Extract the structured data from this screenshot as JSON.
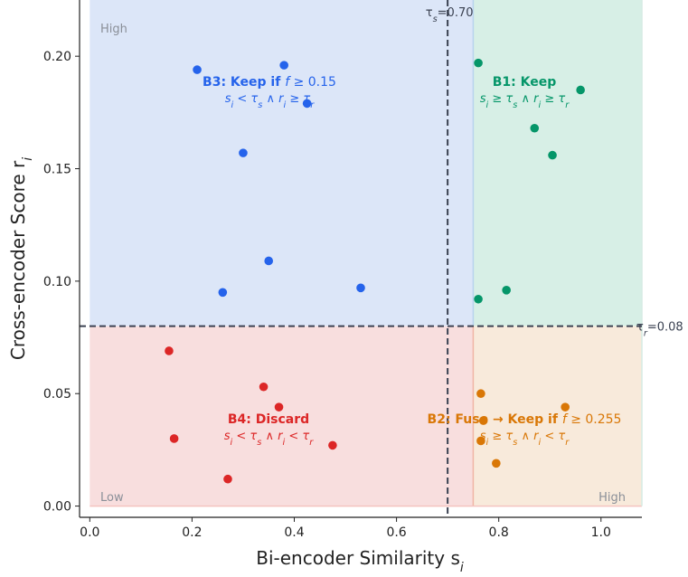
{
  "chart_data": {
    "type": "scatter",
    "xlabel": "Bi-encoder Similarity s",
    "xlabel_sub": "i",
    "ylabel": "Cross-encoder Score r",
    "ylabel_sub": "i",
    "xlim": [
      -0.02,
      1.08
    ],
    "ylim": [
      -0.005,
      0.225
    ],
    "x_ticks": [
      0.0,
      0.2,
      0.4,
      0.6,
      0.8,
      1.0
    ],
    "x_tick_labels": [
      "0.0",
      "0.2",
      "0.4",
      "0.6",
      "0.8",
      "1.0"
    ],
    "y_ticks": [
      0.0,
      0.05,
      0.1,
      0.15,
      0.2
    ],
    "y_tick_labels": [
      "0.00",
      "0.05",
      "0.10",
      "0.15",
      "0.20"
    ],
    "grid": false,
    "thresholds": {
      "tau_s": 0.7,
      "tau_r": 0.08,
      "tau_s_label": "τs=0.70",
      "tau_r_label": "τr=0.08",
      "bucket_split_x": 0.75
    },
    "corner_labels": {
      "top_left": "High",
      "bottom_left": "Low",
      "bottom_right": "High"
    },
    "regions": [
      {
        "name": "B3",
        "title": "B3: Keep if f ≥ 0.15",
        "rule": "si < τs ∧ ri ≥ τr",
        "color": "#2563eb",
        "fill": "#dce6f8"
      },
      {
        "name": "B1",
        "title": "B1: Keep",
        "rule": "si ≥ τs ∧ ri ≥ τr",
        "color": "#059669",
        "fill": "#d7efe6"
      },
      {
        "name": "B4",
        "title": "B4: Discard",
        "rule": "si < τs ∧ ri < τr",
        "color": "#dc2626",
        "fill": "#f8dede"
      },
      {
        "name": "B2",
        "title": "B2: Fuse → Keep if f ≥ 0.255",
        "rule": "si ≥ τs ∧ ri < τr",
        "color": "#d97706",
        "fill": "#f8eadb"
      }
    ],
    "series": [
      {
        "region": "B3",
        "color": "#2563eb",
        "points": [
          [
            0.21,
            0.194
          ],
          [
            0.38,
            0.196
          ],
          [
            0.425,
            0.179
          ],
          [
            0.3,
            0.157
          ],
          [
            0.35,
            0.109
          ],
          [
            0.26,
            0.095
          ],
          [
            0.53,
            0.097
          ]
        ]
      },
      {
        "region": "B1",
        "color": "#059669",
        "points": [
          [
            0.76,
            0.197
          ],
          [
            0.96,
            0.185
          ],
          [
            0.87,
            0.168
          ],
          [
            0.905,
            0.156
          ],
          [
            0.76,
            0.092
          ],
          [
            0.815,
            0.096
          ]
        ]
      },
      {
        "region": "B4",
        "color": "#dc2626",
        "points": [
          [
            0.155,
            0.069
          ],
          [
            0.165,
            0.03
          ],
          [
            0.34,
            0.053
          ],
          [
            0.37,
            0.044
          ],
          [
            0.475,
            0.027
          ],
          [
            0.27,
            0.012
          ]
        ]
      },
      {
        "region": "B2",
        "color": "#d97706",
        "points": [
          [
            0.765,
            0.05
          ],
          [
            0.77,
            0.038
          ],
          [
            0.93,
            0.044
          ],
          [
            0.765,
            0.029
          ],
          [
            0.795,
            0.019
          ]
        ]
      }
    ]
  }
}
